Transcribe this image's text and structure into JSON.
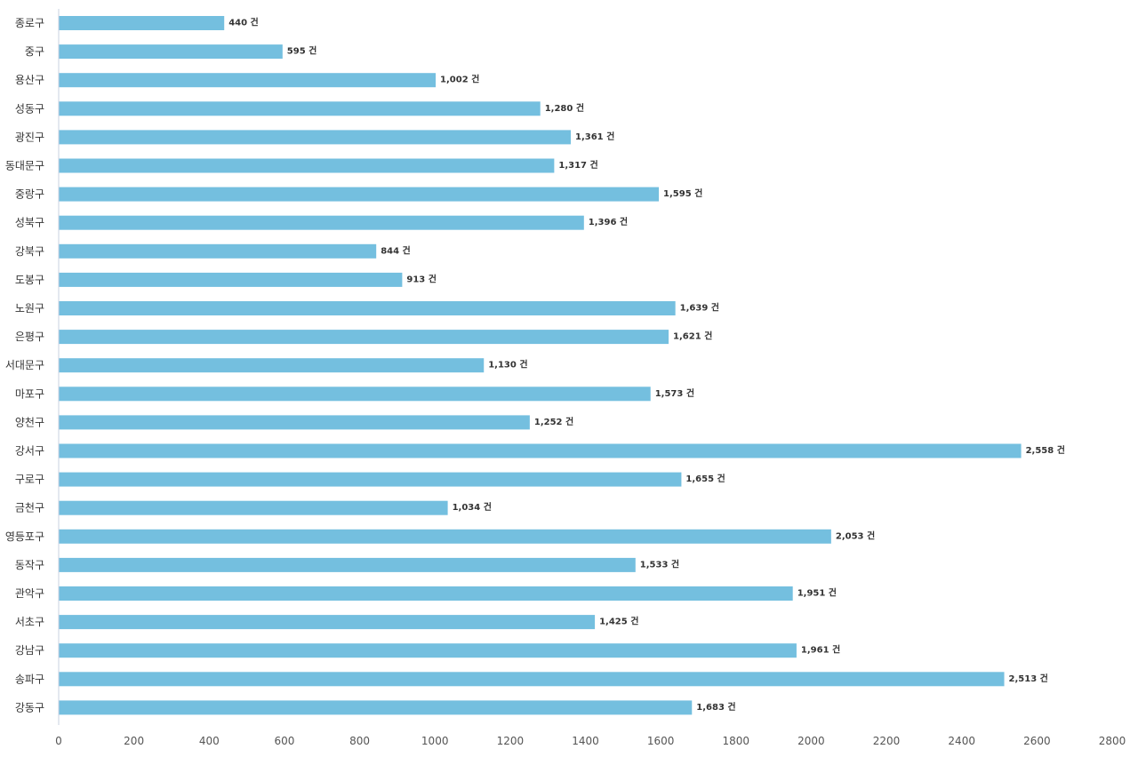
{
  "chart_data": {
    "type": "bar",
    "orientation": "horizontal",
    "categories": [
      "종로구",
      "중구",
      "용산구",
      "성동구",
      "광진구",
      "동대문구",
      "중랑구",
      "성북구",
      "강북구",
      "도봉구",
      "노원구",
      "은평구",
      "서대문구",
      "마포구",
      "양천구",
      "강서구",
      "구로구",
      "금천구",
      "영등포구",
      "동작구",
      "관악구",
      "서초구",
      "강남구",
      "송파구",
      "강동구"
    ],
    "values": [
      440,
      595,
      1002,
      1280,
      1361,
      1317,
      1595,
      1396,
      844,
      913,
      1639,
      1621,
      1130,
      1573,
      1252,
      2558,
      1655,
      1034,
      2053,
      1533,
      1951,
      1425,
      1961,
      2513,
      1683
    ],
    "value_labels": [
      "440 건",
      "595 건",
      "1,002 건",
      "1,280 건",
      "1,361 건",
      "1,317 건",
      "1,595 건",
      "1,396 건",
      "844 건",
      "913 건",
      "1,639 건",
      "1,621 건",
      "1,130 건",
      "1,573 건",
      "1,252 건",
      "2,558 건",
      "1,655 건",
      "1,034 건",
      "2,053 건",
      "1,533 건",
      "1,951 건",
      "1,425 건",
      "1,961 건",
      "2,513 건",
      "1,683 건"
    ],
    "xticks": [
      "0",
      "200",
      "400",
      "600",
      "800",
      "1000",
      "1200",
      "1400",
      "1600",
      "1800",
      "2000",
      "2200",
      "2400",
      "2600",
      "2800"
    ],
    "xlim": [
      0,
      2800
    ],
    "title": "",
    "xlabel": "",
    "ylabel": "",
    "grid": false,
    "bar_color": "#74bfdf",
    "axis_color": "#c8d0e0"
  }
}
